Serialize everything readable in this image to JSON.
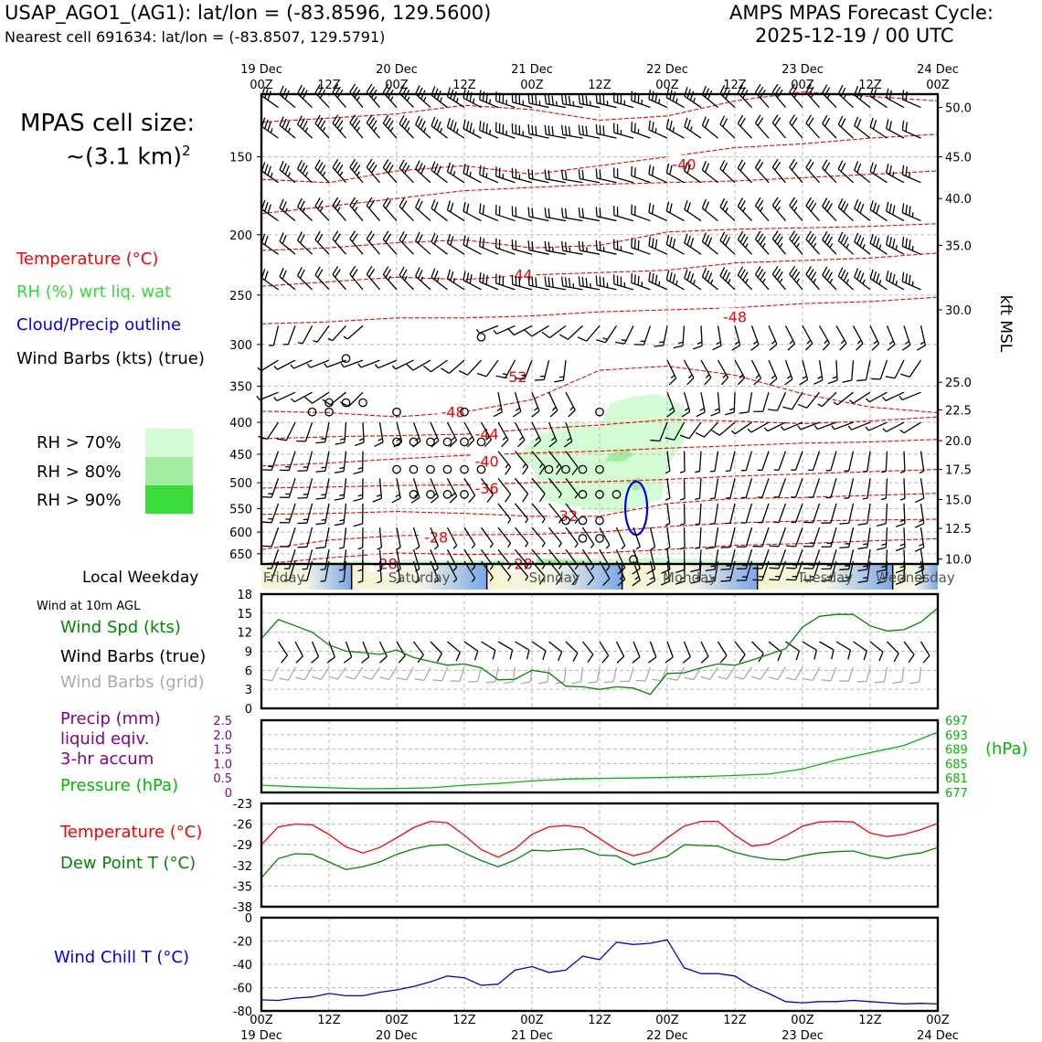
{
  "header": {
    "station_line": "USAP_AGO1_(AG1): lat/lon = (-83.8596, 129.5600)",
    "cell_line": "Nearest cell 691634: lat/lon = (-83.8507, 129.5791)",
    "cycle_title": "AMPS MPAS Forecast Cycle:",
    "cycle_time": "2025-12-19 / 00 UTC"
  },
  "left_panel": {
    "cell_size_label": "MPAS cell size:",
    "cell_size_value": "~(3.1 km)",
    "cell_size_exp": "2",
    "legend_temperature": "Temperature (°C)",
    "legend_rh": "RH (%) wrt liq. wat",
    "legend_cloud": "Cloud/Precip outline",
    "legend_wind": "Wind Barbs (kts) (true)",
    "rh70": "RH > 70%",
    "rh80": "RH > 80%",
    "rh90": "RH > 90%",
    "weekday_label": "Local Weekday",
    "wind10m_label": "Wind at 10m AGL",
    "wind_spd_label": "Wind Spd (kts)",
    "wind_barbs_true": "Wind Barbs (true)",
    "wind_barbs_grid": "Wind Barbs (grid)",
    "precip_label_1": "Precip (mm)",
    "precip_label_2": "liquid eqiv.",
    "precip_label_3": "3-hr accum",
    "pressure_label": "Pressure (hPa)",
    "pressure_unit": "(hPa)",
    "temp_label": "Temperature (°C)",
    "dew_label": "Dew Point T (°C)",
    "chill_label": "Wind Chill T (°C)",
    "kft_label": "kft MSL"
  },
  "colors": {
    "temperature": "#ff0000",
    "rh_70": "#d4fcd4",
    "rh_80": "#a3eda3",
    "rh_90": "#3ddc3d",
    "cloud_outline": "#0000ee",
    "wind_speed": "#008800",
    "wind_barb_grid": "#aaaaaa",
    "precip": "#880088",
    "pressure": "#00bb00",
    "dewpoint": "#008800",
    "wind_chill": "#0000dd",
    "grid": "#bbbbbb"
  },
  "chart_data": [
    {
      "type": "time-height",
      "name": "upper_air",
      "x_top_dates": [
        "19 Dec",
        "20 Dec",
        "21 Dec",
        "22 Dec",
        "23 Dec",
        "24 Dec"
      ],
      "x_ticks": [
        "00Z",
        "12Z",
        "00Z",
        "12Z",
        "00Z",
        "12Z",
        "00Z",
        "12Z",
        "00Z",
        "12Z",
        "00Z"
      ],
      "x_hours": [
        0,
        12,
        24,
        36,
        48,
        60,
        72,
        84,
        96,
        108,
        120
      ],
      "pressure_ticks": [
        150,
        200,
        250,
        300,
        350,
        400,
        450,
        500,
        550,
        600,
        650
      ],
      "kft_ticks": [
        {
          "label": "50.0",
          "p": 125
        },
        {
          "label": "45.0",
          "p": 150
        },
        {
          "label": "40.0",
          "p": 175
        },
        {
          "label": "35.0",
          "p": 208
        },
        {
          "label": "30.0",
          "p": 264
        },
        {
          "label": "25.0",
          "p": 345
        },
        {
          "label": "22.5",
          "p": 382
        },
        {
          "label": "20.0",
          "p": 428
        },
        {
          "label": "17.5",
          "p": 476
        },
        {
          "label": "15.0",
          "p": 532
        },
        {
          "label": "12.5",
          "p": 592
        },
        {
          "label": "10.0",
          "p": 663
        }
      ],
      "ylim_hpa": [
        119,
        675
      ],
      "temperature_contour_labels": [
        {
          "label": "-40",
          "t": 75,
          "p": 154
        },
        {
          "label": "-44",
          "t": 46,
          "p": 232
        },
        {
          "label": "-48",
          "t": 84,
          "p": 271
        },
        {
          "label": "-52",
          "t": 45,
          "p": 338
        },
        {
          "label": "-48",
          "t": 34,
          "p": 385
        },
        {
          "label": "-44",
          "t": 40,
          "p": 417
        },
        {
          "label": "-40",
          "t": 40,
          "p": 462
        },
        {
          "label": "-36",
          "t": 40,
          "p": 510
        },
        {
          "label": "-32",
          "t": 54,
          "p": 564
        },
        {
          "label": "-28",
          "t": 31,
          "p": 611
        },
        {
          "label": "-28",
          "t": 22,
          "p": 674
        },
        {
          "label": "-28",
          "t": 46,
          "p": 674
        }
      ]
    },
    {
      "type": "weekday-strip",
      "labels": [
        "Friday",
        "Saturday",
        "Sunday",
        "Monday",
        "Tuesday",
        "Wednesday"
      ]
    },
    {
      "type": "line",
      "name": "wind_speed_10m",
      "ylim": [
        0,
        18
      ],
      "yticks": [
        0,
        3,
        6,
        9,
        12,
        15,
        18
      ],
      "x": [
        0,
        3,
        6,
        9,
        12,
        15,
        18,
        21,
        24,
        27,
        30,
        33,
        36,
        39,
        42,
        45,
        48,
        51,
        54,
        57,
        60,
        63,
        66,
        69,
        72,
        75,
        78,
        81,
        84,
        87,
        90,
        93,
        96,
        99,
        102,
        105,
        108,
        111,
        114,
        117,
        120
      ],
      "values": [
        11,
        14,
        13,
        12,
        10,
        9,
        8.8,
        8.5,
        9.2,
        8,
        7.4,
        6.8,
        7,
        6.4,
        4.5,
        4.6,
        6,
        5.6,
        3.5,
        3.4,
        3,
        3.4,
        3.2,
        2.2,
        5.5,
        5.6,
        6.4,
        7,
        6.8,
        7.6,
        8.5,
        9.4,
        12.8,
        14.5,
        14.8,
        14.8,
        13,
        12.2,
        12.4,
        13.6,
        15.8
      ]
    },
    {
      "type": "line",
      "name": "precip_pressure",
      "precip_ylim": [
        0,
        2.5
      ],
      "precip_ticks": [
        "0",
        "0.5",
        "1.0",
        "1.5",
        "2.0",
        "2.5"
      ],
      "pressure_ylim": [
        677,
        697
      ],
      "pressure_ticks": [
        "677",
        "681",
        "685",
        "689",
        "693",
        "697"
      ],
      "x": [
        0,
        6,
        12,
        18,
        24,
        30,
        36,
        42,
        48,
        54,
        60,
        66,
        72,
        78,
        84,
        90,
        96,
        102,
        108,
        114,
        120
      ],
      "pressure": [
        679,
        678.6,
        678.3,
        678,
        678.1,
        678.3,
        679,
        679.5,
        680.2,
        680.7,
        680.9,
        681,
        681.2,
        681.4,
        681.7,
        682.1,
        683.5,
        686,
        688,
        690,
        693.7
      ],
      "precip": [
        0,
        0,
        0,
        0,
        0,
        0,
        0,
        0,
        0,
        0,
        0,
        0,
        0,
        0,
        0,
        0,
        0,
        0,
        0,
        0,
        0
      ]
    },
    {
      "type": "line",
      "name": "temperature_dewpoint",
      "ylim": [
        -38,
        -23
      ],
      "yticks": [
        -38,
        -35,
        -32,
        -29,
        -26,
        -23
      ],
      "x": [
        0,
        3,
        6,
        9,
        12,
        15,
        18,
        21,
        24,
        27,
        30,
        33,
        36,
        39,
        42,
        45,
        48,
        51,
        54,
        57,
        60,
        63,
        66,
        69,
        72,
        75,
        78,
        81,
        84,
        87,
        90,
        93,
        96,
        99,
        102,
        105,
        108,
        111,
        114,
        117,
        120
      ],
      "temperature": [
        -29,
        -26.4,
        -26,
        -26.1,
        -27.5,
        -29.3,
        -30.2,
        -29.4,
        -28,
        -26.5,
        -25.6,
        -25.8,
        -27.6,
        -29.7,
        -30.8,
        -29.6,
        -27.5,
        -26.4,
        -26.2,
        -26.5,
        -28.1,
        -29.7,
        -30.6,
        -30,
        -28,
        -26.3,
        -25.6,
        -25.6,
        -27.6,
        -29.2,
        -28.9,
        -27.7,
        -26.3,
        -25.7,
        -25.6,
        -25.7,
        -27.3,
        -27.8,
        -27.5,
        -26.8,
        -25.9
      ],
      "dewpoint": [
        -33.8,
        -31,
        -30.3,
        -30.4,
        -31.5,
        -32.6,
        -32.2,
        -31.5,
        -30.4,
        -29.6,
        -29.1,
        -29,
        -30.2,
        -31.3,
        -32.2,
        -31.2,
        -29.8,
        -29.9,
        -29.7,
        -29.6,
        -30.5,
        -30.6,
        -31.9,
        -31.3,
        -30.7,
        -29,
        -29.1,
        -29.2,
        -30.1,
        -30.7,
        -31.1,
        -31.2,
        -30.6,
        -30.2,
        -30,
        -29.9,
        -30.6,
        -31,
        -30.5,
        -30.2,
        -29.4
      ]
    },
    {
      "type": "line",
      "name": "wind_chill",
      "ylim": [
        -80,
        0
      ],
      "yticks": [
        -80,
        -60,
        -40,
        -20,
        0
      ],
      "x_tick_dates": [
        "19 Dec",
        "20 Dec",
        "21 Dec",
        "22 Dec",
        "23 Dec",
        "24 Dec"
      ],
      "x": [
        0,
        3,
        6,
        9,
        12,
        15,
        18,
        21,
        24,
        27,
        30,
        33,
        36,
        39,
        42,
        45,
        48,
        51,
        54,
        57,
        60,
        63,
        66,
        69,
        72,
        75,
        78,
        81,
        84,
        87,
        90,
        93,
        96,
        99,
        102,
        105,
        108,
        111,
        114,
        117,
        120
      ],
      "values": [
        -70.5,
        -71,
        -69,
        -68,
        -65,
        -67,
        -67,
        -64,
        -62,
        -59,
        -55,
        -50,
        -51.5,
        -58,
        -57,
        -45,
        -42,
        -47,
        -45,
        -33,
        -36,
        -21,
        -23,
        -22,
        -19,
        -43,
        -48,
        -48,
        -50,
        -59,
        -65,
        -72,
        -73,
        -72,
        -72,
        -71,
        -72,
        -73,
        -74,
        -73.5,
        -74
      ]
    }
  ]
}
